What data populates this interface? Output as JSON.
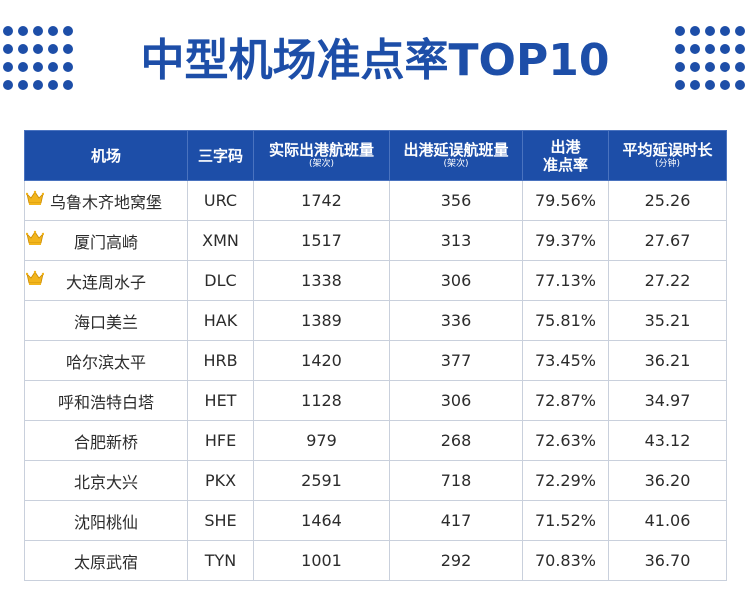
{
  "title": "中型机场准点率TOP10",
  "colors": {
    "primary": "#1d4ea8",
    "crown": "#f2b51d"
  },
  "headers": {
    "airport": "机场",
    "code": "三字码",
    "flights": "实际出港航班量",
    "flights_unit": "(架次)",
    "delayed": "出港延误航班量",
    "delayed_unit": "(架次)",
    "ontime_line1": "出港",
    "ontime_line2": "准点率",
    "delay_time": "平均延误时长",
    "delay_time_unit": "(分钟)"
  },
  "rows": [
    {
      "airport": "乌鲁木齐地窝堡",
      "code": "URC",
      "flights": "1742",
      "delayed": "356",
      "ontime": "79.56%",
      "delay_time": "25.26",
      "crown": true
    },
    {
      "airport": "厦门高崎",
      "code": "XMN",
      "flights": "1517",
      "delayed": "313",
      "ontime": "79.37%",
      "delay_time": "27.67",
      "crown": true
    },
    {
      "airport": "大连周水子",
      "code": "DLC",
      "flights": "1338",
      "delayed": "306",
      "ontime": "77.13%",
      "delay_time": "27.22",
      "crown": true
    },
    {
      "airport": "海口美兰",
      "code": "HAK",
      "flights": "1389",
      "delayed": "336",
      "ontime": "75.81%",
      "delay_time": "35.21",
      "crown": false
    },
    {
      "airport": "哈尔滨太平",
      "code": "HRB",
      "flights": "1420",
      "delayed": "377",
      "ontime": "73.45%",
      "delay_time": "36.21",
      "crown": false
    },
    {
      "airport": "呼和浩特白塔",
      "code": "HET",
      "flights": "1128",
      "delayed": "306",
      "ontime": "72.87%",
      "delay_time": "34.97",
      "crown": false
    },
    {
      "airport": "合肥新桥",
      "code": "HFE",
      "flights": "979",
      "delayed": "268",
      "ontime": "72.63%",
      "delay_time": "43.12",
      "crown": false
    },
    {
      "airport": "北京大兴",
      "code": "PKX",
      "flights": "2591",
      "delayed": "718",
      "ontime": "72.29%",
      "delay_time": "36.20",
      "crown": false
    },
    {
      "airport": "沈阳桃仙",
      "code": "SHE",
      "flights": "1464",
      "delayed": "417",
      "ontime": "71.52%",
      "delay_time": "41.06",
      "crown": false
    },
    {
      "airport": "太原武宿",
      "code": "TYN",
      "flights": "1001",
      "delayed": "292",
      "ontime": "70.83%",
      "delay_time": "36.70",
      "crown": false
    }
  ]
}
